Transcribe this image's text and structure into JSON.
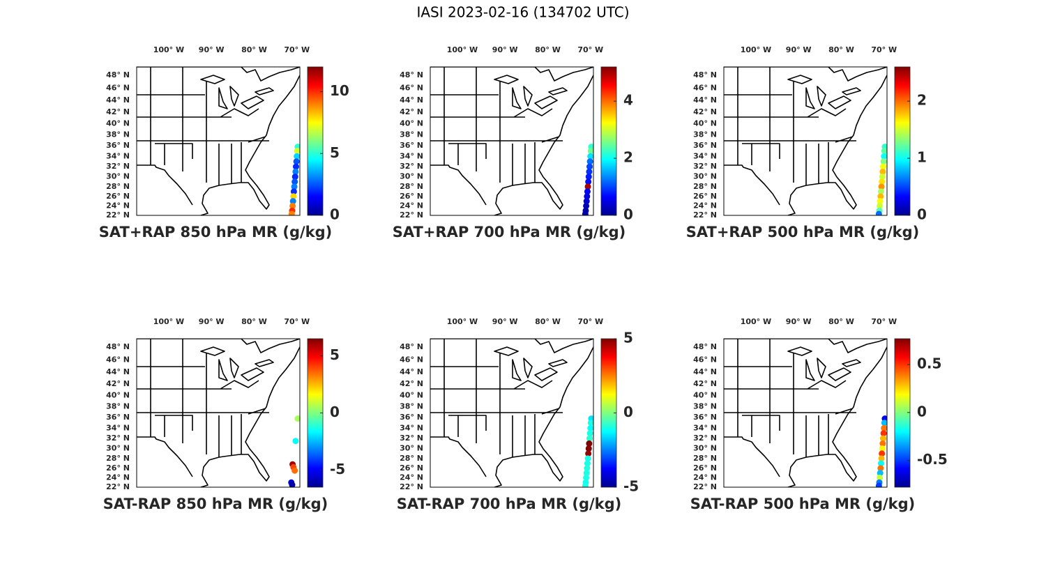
{
  "title": "IASI 2023-02-16 (134702 UTC)",
  "map": {
    "lonlim": [
      -107.5,
      -69.3
    ],
    "latlim": [
      22,
      49.3
    ],
    "lon_ticks": [
      {
        "value": -100,
        "label": "100° W"
      },
      {
        "value": -90,
        "label": "90° W"
      },
      {
        "value": -80,
        "label": "80° W"
      },
      {
        "value": -70,
        "label": "70° W"
      }
    ],
    "lat_ticks": [
      {
        "value": 22,
        "label": "22° N"
      },
      {
        "value": 24,
        "label": "24° N"
      },
      {
        "value": 26,
        "label": "26° N"
      },
      {
        "value": 28,
        "label": "28° N"
      },
      {
        "value": 30,
        "label": "30° N"
      },
      {
        "value": 32,
        "label": "32° N"
      },
      {
        "value": 34,
        "label": "34° N"
      },
      {
        "value": 36,
        "label": "36° N"
      },
      {
        "value": 38,
        "label": "38° N"
      },
      {
        "value": 40,
        "label": "40° N"
      },
      {
        "value": 42,
        "label": "42° N"
      },
      {
        "value": 44,
        "label": "44° N"
      },
      {
        "value": 46,
        "label": "46° N"
      },
      {
        "value": 48,
        "label": "48° N"
      }
    ]
  },
  "panels": [
    {
      "title": "SAT+RAP 850 hPa MR (g/kg)",
      "clim": [
        0,
        12
      ],
      "cticks": [
        0,
        5,
        10
      ],
      "lat": [
        35.8,
        35,
        34,
        33,
        32,
        31,
        30,
        29,
        28,
        27,
        26,
        25,
        24,
        23,
        22.3
      ],
      "lon": [
        -69.8,
        -69.9,
        -70.0,
        -70.1,
        -70.2,
        -70.3,
        -70.4,
        -70.5,
        -70.6,
        -70.7,
        -70.8,
        -70.9,
        -71.0,
        -71.1,
        -71.2
      ],
      "values": [
        5,
        7,
        4,
        2.5,
        2,
        3,
        2,
        2.5,
        3,
        2,
        8,
        3,
        9,
        10,
        9
      ]
    },
    {
      "title": "SAT+RAP 700 hPa MR (g/kg)",
      "clim": [
        0,
        5.2
      ],
      "cticks": [
        0,
        2,
        4
      ],
      "lat": [
        35.8,
        35,
        34,
        33,
        32,
        31,
        30,
        29,
        28,
        27,
        26,
        25,
        24,
        23,
        22.3
      ],
      "lon": [
        -69.8,
        -69.9,
        -70.0,
        -70.1,
        -70.2,
        -70.3,
        -70.4,
        -70.5,
        -70.6,
        -70.7,
        -70.8,
        -70.9,
        -71.0,
        -71.1,
        -71.2
      ],
      "values": [
        2.2,
        2.5,
        1.8,
        1.2,
        1,
        0.9,
        0.8,
        0.7,
        5,
        0.6,
        0.5,
        0.4,
        0.3,
        0.2,
        0.2
      ]
    },
    {
      "title": "SAT+RAP 500 hPa MR (g/kg)",
      "clim": [
        0,
        2.6
      ],
      "cticks": [
        0,
        1,
        2
      ],
      "lat": [
        35.8,
        35,
        34,
        33,
        32,
        31,
        30,
        29,
        28,
        27,
        26,
        25,
        24,
        23,
        22.3
      ],
      "lon": [
        -69.8,
        -69.9,
        -70.0,
        -70.1,
        -70.2,
        -70.3,
        -70.4,
        -70.5,
        -70.6,
        -70.7,
        -70.8,
        -70.9,
        -71.0,
        -71.1,
        -71.2
      ],
      "values": [
        1.1,
        1.2,
        1.0,
        1.3,
        1.6,
        1.8,
        1.5,
        1.7,
        1.9,
        1.4,
        1.8,
        1.6,
        1.5,
        1.2,
        0.6
      ]
    },
    {
      "title": "SAT-RAP 850 hPa MR (g/kg)",
      "clim": [
        -6.5,
        6.5
      ],
      "cticks": [
        -5,
        0,
        5
      ],
      "lat": [
        35.8,
        31.5,
        26.8,
        26.2,
        25.5,
        23,
        22.5
      ],
      "lon": [
        -69.8,
        -70.3,
        -71,
        -70.8,
        -70.5,
        -71.3,
        -71.1
      ],
      "values": [
        0.5,
        -1.5,
        6,
        4,
        3.5,
        -5.5,
        -6
      ]
    },
    {
      "title": "SAT-RAP 700 hPa MR (g/kg)",
      "clim": [
        -5,
        5
      ],
      "cticks": [
        -5,
        0,
        5
      ],
      "lat": [
        35.8,
        35,
        34,
        33,
        32,
        31,
        30,
        29,
        28,
        27,
        26,
        25,
        24,
        23,
        22.3
      ],
      "lon": [
        -69.8,
        -69.9,
        -70.0,
        -70.1,
        -70.2,
        -70.3,
        -70.4,
        -70.5,
        -70.6,
        -70.7,
        -70.8,
        -70.9,
        -71.0,
        -71.1,
        -71.2
      ],
      "values": [
        -1.5,
        -1,
        -1.2,
        -1,
        -0.8,
        5,
        5,
        4.8,
        -1,
        -1,
        -0.9,
        -1,
        -1,
        -1.1,
        -1
      ]
    },
    {
      "title": "SAT-RAP 500 hPa MR (g/kg)",
      "clim": [
        -0.78,
        0.77
      ],
      "cticks": [
        -0.5,
        0,
        0.5
      ],
      "lat": [
        35.8,
        35,
        34,
        33,
        32,
        31,
        30,
        29,
        28,
        27,
        26,
        25,
        24,
        23,
        22.3
      ],
      "lon": [
        -69.8,
        -69.9,
        -70.0,
        -70.1,
        -70.2,
        -70.3,
        -70.4,
        -70.5,
        -70.6,
        -70.7,
        -70.8,
        -70.9,
        -71.0,
        -71.1,
        -71.2
      ],
      "values": [
        -0.6,
        -0.3,
        0.4,
        0.5,
        0.3,
        0.4,
        0.2,
        0.5,
        0.3,
        -0.2,
        0.4,
        -0.3,
        0.1,
        -0.4,
        -0.5
      ]
    }
  ]
}
